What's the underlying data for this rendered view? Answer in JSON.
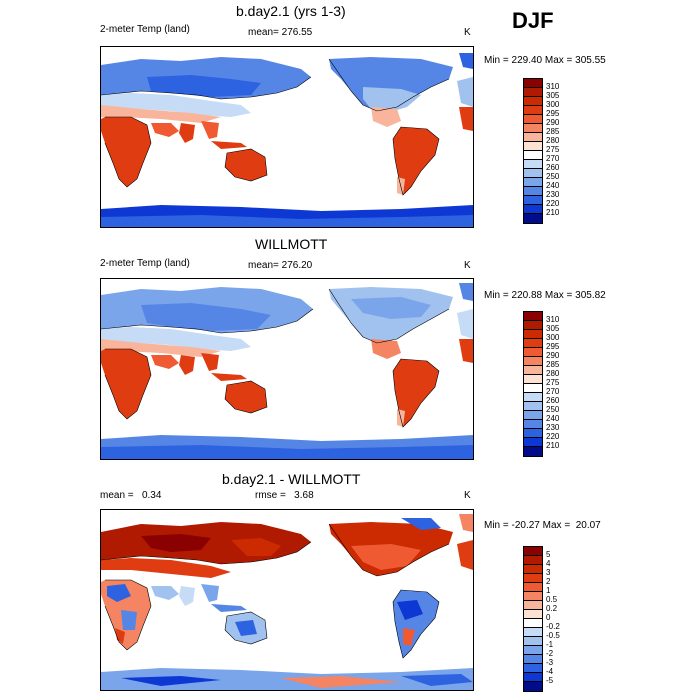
{
  "season": "DJF",
  "panels": [
    {
      "id": "model",
      "title": "b.day2.1 (yrs 1-3)",
      "left_label": "2-meter Temp (land)",
      "center_label": "mean= 276.55",
      "units": "K",
      "minmax": "Min = 229.40 Max = 305.55",
      "colorbar": {
        "levels": [
          "310",
          "305",
          "300",
          "295",
          "290",
          "285",
          "280",
          "275",
          "270",
          "260",
          "250",
          "240",
          "230",
          "220",
          "210"
        ],
        "colors": [
          "#8b0000",
          "#b01a00",
          "#cc2a00",
          "#e03c12",
          "#f05a32",
          "#f58463",
          "#f9b59b",
          "#fde1d2",
          "#ffffff",
          "#c6dbf5",
          "#a1c2ef",
          "#7aa5ea",
          "#5586e6",
          "#2d62e0",
          "#0e38d4",
          "#000c8a"
        ]
      }
    },
    {
      "id": "obs",
      "title": "WILLMOTT",
      "left_label": "2-meter Temp (land)",
      "center_label": "mean= 276.20",
      "units": "K",
      "minmax": "Min = 220.88 Max = 305.82",
      "colorbar": {
        "levels": [
          "310",
          "305",
          "300",
          "295",
          "290",
          "285",
          "280",
          "275",
          "270",
          "260",
          "250",
          "240",
          "230",
          "220",
          "210"
        ],
        "colors": [
          "#8b0000",
          "#b01a00",
          "#cc2a00",
          "#e03c12",
          "#f05a32",
          "#f58463",
          "#f9b59b",
          "#fde1d2",
          "#ffffff",
          "#c6dbf5",
          "#a1c2ef",
          "#7aa5ea",
          "#5586e6",
          "#2d62e0",
          "#0e38d4",
          "#000c8a"
        ]
      }
    },
    {
      "id": "diff",
      "title": "b.day2.1 - WILLMOTT",
      "left_label": "mean =   0.34",
      "center_label": "rmse =   3.68",
      "units": "K",
      "minmax": "Min = -20.27 Max =  20.07",
      "colorbar": {
        "levels": [
          "5",
          "4",
          "3",
          "2",
          "1",
          "0.5",
          "0.2",
          "0",
          "-0.2",
          "-0.5",
          "-1",
          "-2",
          "-3",
          "-4",
          "-5"
        ],
        "colors": [
          "#8b0000",
          "#b01a00",
          "#cc2a00",
          "#e03c12",
          "#f05a32",
          "#f58463",
          "#f9b59b",
          "#fde1d2",
          "#ffffff",
          "#c6dbf5",
          "#a1c2ef",
          "#7aa5ea",
          "#5586e6",
          "#2d62e0",
          "#0e38d4",
          "#000c8a"
        ]
      }
    }
  ]
}
